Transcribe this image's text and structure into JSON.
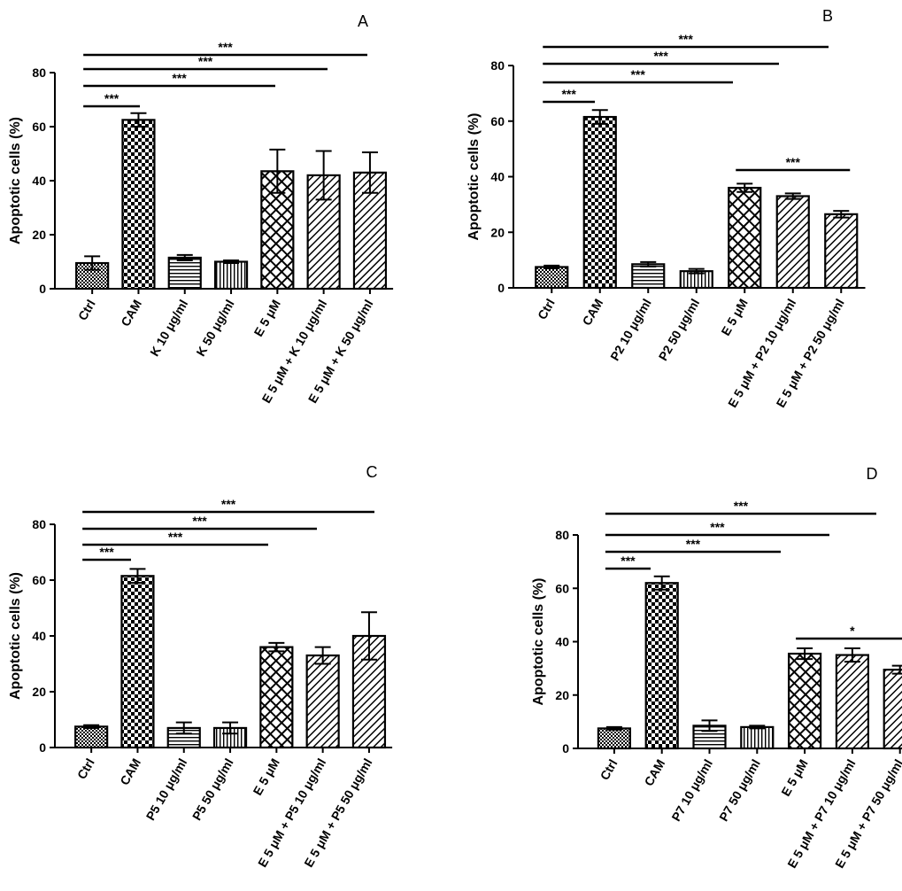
{
  "chart_data": [
    {
      "type": "bar",
      "panel_label": "A",
      "ylabel": "Apoptotic cells (%)",
      "ylim": [
        0,
        80
      ],
      "yticks": [
        "0",
        "20",
        "40",
        "60",
        "80"
      ],
      "categories": [
        "Ctrl",
        "CAM",
        "K 10 μg/ml",
        "K 50 μg/ml",
        "E 5 μM",
        "E 5 μM + K 10 μg/ml",
        "E 5 μM + K 50 μg/ml"
      ],
      "values": [
        9.5,
        62.5,
        11.5,
        10,
        43.5,
        42,
        43
      ],
      "errors": [
        2.5,
        2.5,
        1,
        0.5,
        8,
        9,
        7.5
      ],
      "patterns": [
        "fine",
        "checker",
        "hlines",
        "vlines",
        "crosshatch",
        "diag",
        "diag"
      ],
      "significance": [
        {
          "from": 0,
          "to": 1,
          "label": "***"
        },
        {
          "from": 0,
          "to": 4,
          "label": "***"
        },
        {
          "from": 0,
          "to": 5,
          "label": "***"
        },
        {
          "from": 0,
          "to": 6,
          "label": "***"
        }
      ]
    },
    {
      "type": "bar",
      "panel_label": "B",
      "ylabel": "Apoptotic cells (%)",
      "ylim": [
        0,
        80
      ],
      "yticks": [
        "0",
        "20",
        "40",
        "60",
        "80"
      ],
      "categories": [
        "Ctrl",
        "CAM",
        "P2 10 μg/ml",
        "P2 50 μg/ml",
        "E 5 μM",
        "E 5 μM + P2 10 μg/ml",
        "E 5 μM + P2 50 μg/ml"
      ],
      "values": [
        7.5,
        61.5,
        8.5,
        6,
        36,
        33,
        26.5
      ],
      "errors": [
        0.5,
        2.5,
        0.8,
        0.8,
        1.5,
        1,
        1.2
      ],
      "patterns": [
        "fine",
        "checker",
        "hlines",
        "vlines",
        "crosshatch",
        "diag",
        "diag"
      ],
      "significance": [
        {
          "from": 0,
          "to": 1,
          "label": "***"
        },
        {
          "from": 0,
          "to": 4,
          "label": "***"
        },
        {
          "from": 0,
          "to": 5,
          "label": "***"
        },
        {
          "from": 0,
          "to": 6,
          "label": "***"
        },
        {
          "from": 4,
          "to": 6,
          "label": "***"
        }
      ]
    },
    {
      "type": "bar",
      "panel_label": "C",
      "ylabel": "Apoptotic cells (%)",
      "ylim": [
        0,
        80
      ],
      "yticks": [
        "0",
        "20",
        "40",
        "60",
        "80"
      ],
      "categories": [
        "Ctrl",
        "CAM",
        "P5 10 μg/ml",
        "P5 50 μg/ml",
        "E 5 μM",
        "E 5 μM + P5 10 μg/ml",
        "E 5 μM + P5 50 μg/ml"
      ],
      "values": [
        7.5,
        61.5,
        7,
        7,
        36,
        33,
        40
      ],
      "errors": [
        0.5,
        2.5,
        2,
        2,
        1.5,
        3,
        8.5
      ],
      "patterns": [
        "fine",
        "checker",
        "hlines",
        "vlines",
        "crosshatch",
        "diag",
        "diag"
      ],
      "significance": [
        {
          "from": 0,
          "to": 1,
          "label": "***"
        },
        {
          "from": 0,
          "to": 4,
          "label": "***"
        },
        {
          "from": 0,
          "to": 5,
          "label": "***"
        },
        {
          "from": 0,
          "to": 6,
          "label": "***"
        }
      ]
    },
    {
      "type": "bar",
      "panel_label": "D",
      "ylabel": "Apoptotic cells (%)",
      "ylim": [
        0,
        80
      ],
      "yticks": [
        "0",
        "20",
        "40",
        "60",
        "80"
      ],
      "categories": [
        "Ctrl",
        "CAM",
        "P7 10 μg/ml",
        "P7 50 μg/ml",
        "E 5 μM",
        "E 5 μM + P7 10 μg/ml",
        "E 5 μM + P7 50 μg/ml"
      ],
      "values": [
        7.5,
        62,
        8.5,
        8,
        35.5,
        35,
        29.5
      ],
      "errors": [
        0.5,
        2.5,
        2,
        0.5,
        2,
        2.5,
        1.5
      ],
      "patterns": [
        "fine",
        "checker",
        "hlines",
        "vlines",
        "crosshatch",
        "diag",
        "diag"
      ],
      "significance": [
        {
          "from": 0,
          "to": 1,
          "label": "***"
        },
        {
          "from": 0,
          "to": 4,
          "label": "***"
        },
        {
          "from": 0,
          "to": 5,
          "label": "***"
        },
        {
          "from": 0,
          "to": 6,
          "label": "***"
        },
        {
          "from": 4,
          "to": 6,
          "label": "*"
        }
      ]
    }
  ]
}
